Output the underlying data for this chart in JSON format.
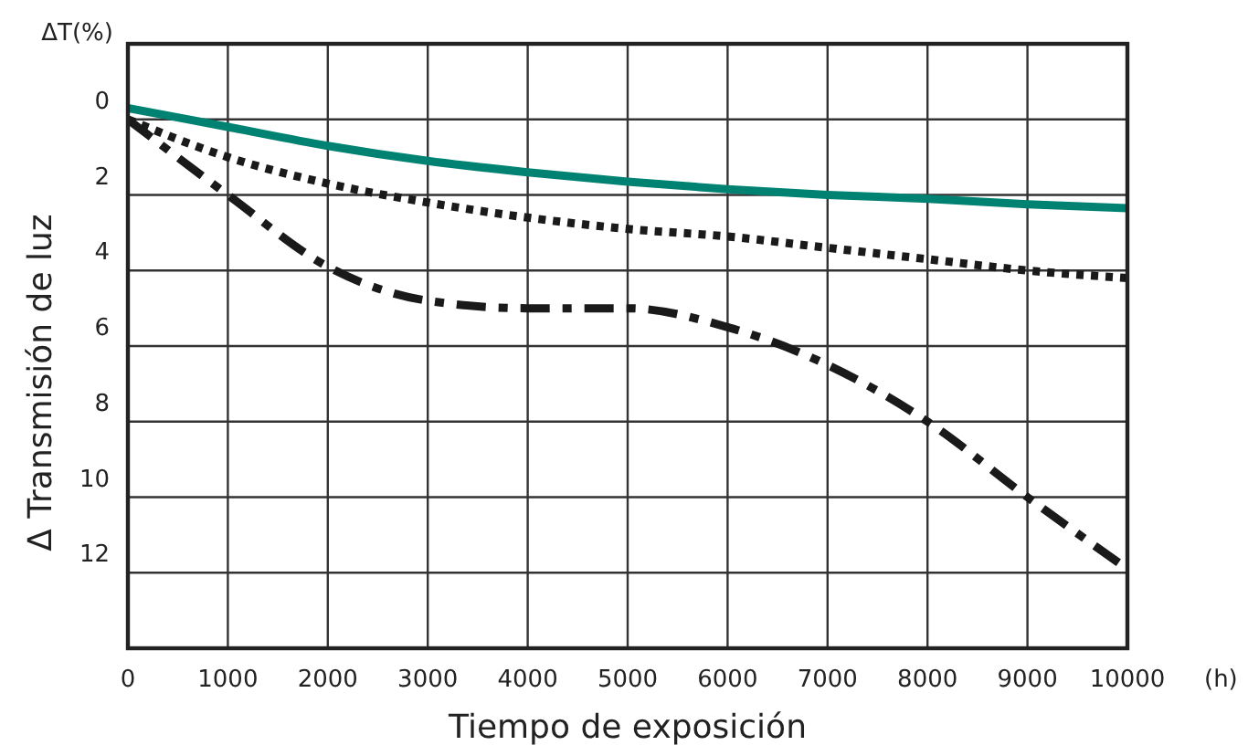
{
  "chart_data": {
    "type": "line",
    "xlabel": "Tiempo de exposición",
    "ylabel": "Δ Transmisión de luz",
    "annotations": [
      "ΔT(%)",
      "(h)"
    ],
    "xlim": [
      0,
      10000
    ],
    "xticks": [
      0,
      1000,
      2000,
      3000,
      4000,
      5000,
      6000,
      7000,
      8000,
      9000,
      10000
    ],
    "ylim": [
      14,
      -2
    ],
    "yticks": [
      0,
      2,
      4,
      6,
      8,
      10,
      12
    ],
    "grid": true,
    "series": [
      {
        "color": "#008272",
        "line_style": "solid",
        "x": [
          0,
          1000,
          2000,
          3000,
          4000,
          5000,
          6000,
          7000,
          8000,
          9000,
          10000
        ],
        "values": [
          -0.3,
          0.2,
          0.7,
          1.1,
          1.4,
          1.65,
          1.85,
          2.0,
          2.1,
          2.25,
          2.35
        ]
      },
      {
        "color": "#1a1a1a",
        "line_style": "dotted",
        "x": [
          0,
          1000,
          2000,
          3000,
          4000,
          5000,
          6000,
          7000,
          8000,
          9000,
          10000
        ],
        "values": [
          0,
          1.0,
          1.7,
          2.2,
          2.6,
          2.9,
          3.1,
          3.4,
          3.7,
          4.0,
          4.2
        ]
      },
      {
        "color": "#1a1a1a",
        "line_style": "dashed",
        "x": [
          0,
          1000,
          2000,
          3000,
          4000,
          5000,
          6000,
          7000,
          8000,
          9000,
          10000
        ],
        "values": [
          0,
          2.0,
          3.9,
          4.8,
          5.0,
          5.0,
          5.5,
          6.5,
          8.0,
          10.0,
          11.9
        ]
      }
    ]
  }
}
